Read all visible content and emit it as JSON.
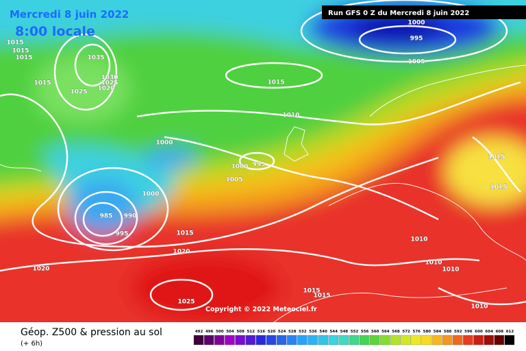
{
  "header": {
    "date": "Mercredi 8 juin 2022",
    "time": "8:00 locale",
    "run": "Run GFS 0 Z du Mercredi 8 juin 2022"
  },
  "copyright": "Copyright © 2022 Meteociel.fr",
  "footer": {
    "title": "Géop. Z500 & pression au sol",
    "lead": "(+ 6h)"
  },
  "isobar_labels": [
    "1015",
    "1015",
    "1015",
    "1035",
    "1030",
    "1025",
    "1020",
    "1015",
    "1025",
    "1000",
    "995",
    "1005",
    "1015",
    "1010",
    "1000",
    "1000",
    "995",
    "1005",
    "1000",
    "985",
    "990",
    "995",
    "1015",
    "1020",
    "1020",
    "1025",
    "1015",
    "1015",
    "1010",
    "1010",
    "1010",
    "1015",
    "1015",
    "1010"
  ],
  "colorbar": {
    "labels": [
      "492",
      "496",
      "500",
      "504",
      "508",
      "512",
      "516",
      "520",
      "524",
      "528",
      "532",
      "536",
      "540",
      "544",
      "548",
      "552",
      "556",
      "560",
      "564",
      "568",
      "572",
      "576",
      "580",
      "584",
      "588",
      "592",
      "596",
      "600",
      "604",
      "608",
      "612"
    ]
  }
}
